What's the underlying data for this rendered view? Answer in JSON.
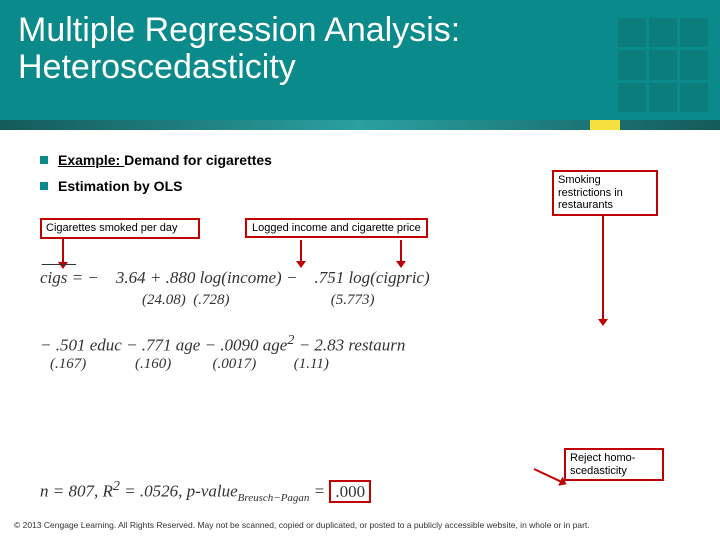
{
  "header": {
    "title_line1": "Multiple Regression Analysis:",
    "title_line2": "Heteroscedasticity",
    "bg_color": "#0a8a8a",
    "text_color": "#ffffff"
  },
  "bullets": {
    "line1_prefix": "Example: ",
    "line1_rest": "Demand for cigarettes",
    "line2": "Estimation by OLS"
  },
  "annotations": {
    "cigs_per_day": "Cigarettes smoked per day",
    "logged_income": "Logged income and cigarette price",
    "smoking_restrict": "Smoking restrictions in restaurants",
    "reject_homo": "Reject homo-scedasticity"
  },
  "equations": {
    "eq1_lhs": "cigs",
    "eq1_eq": " = − ",
    "eq1_c1": "3.64",
    "eq1_plus": " + ",
    "eq1_c2": ".880",
    "eq1_c2v": " log(income) − ",
    "eq1_c3": ".751",
    "eq1_c3v": " log(cigpric)",
    "se1_a": "(24.08)",
    "se1_b": "(.728)",
    "se1_c": "(5.773)",
    "eq2_a": "− .501 educ − .771 age − .0090 age",
    "eq2_sup": "2",
    "eq2_b": " − 2.83 restaurn",
    "se2_a": "(.167)",
    "se2_b": "(.160)",
    "se2_c": "(.0017)",
    "se2_d": "(1.11)",
    "eq4_a": "n = 807, R",
    "eq4_sup": "2",
    "eq4_b": " = .0526, p-value",
    "eq4_sub": "Breusch−Pagan",
    "eq4_c": " = ",
    "eq4_pval": ".000"
  },
  "copyright": "© 2013 Cengage Learning. All Rights Reserved. May not be scanned, copied or duplicated, or posted to a publicly accessible website, in whole or in part.",
  "colors": {
    "callout_border": "#c00000",
    "bullet_square": "#0a8a8a"
  }
}
